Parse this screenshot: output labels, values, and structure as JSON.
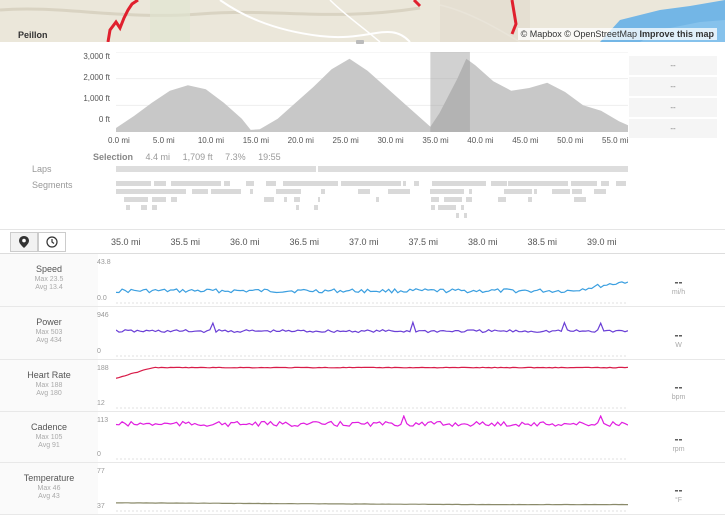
{
  "map": {
    "place": "Peillon",
    "attribution_mapbox": "© Mapbox",
    "attribution_osm": "© OpenStreetMap",
    "attribution_improve": "Improve this map"
  },
  "overview": {
    "y_ticks": [
      "3,000 ft",
      "2,000 ft",
      "1,000 ft",
      "0 ft"
    ],
    "x_ticks": [
      "0.0 mi",
      "5.0 mi",
      "10.0 mi",
      "15.0 mi",
      "20.0 mi",
      "25.0 mi",
      "30.0 mi",
      "35.0 mi",
      "40.0 mi",
      "45.0 mi",
      "50.0 mi",
      "55.0 mi"
    ],
    "side_values": [
      "--",
      "--",
      "--",
      "--"
    ],
    "selection": {
      "label": "Selection",
      "distance": "4.4 mi",
      "elevation": "1,709 ft",
      "grade": "7.3%",
      "time": "19:55"
    },
    "laps_label": "Laps",
    "segments_label": "Segments"
  },
  "tabs": {
    "map_icon": "map-pin-icon",
    "clock_icon": "clock-icon",
    "x_ticks": [
      "35.0 mi",
      "35.5 mi",
      "36.0 mi",
      "36.5 mi",
      "37.0 mi",
      "37.5 mi",
      "38.0 mi",
      "38.5 mi",
      "39.0 mi"
    ]
  },
  "metrics": [
    {
      "name": "Speed",
      "max": "Max 23.5",
      "avg": "Avg 13.4",
      "axis_max": "43.8",
      "axis_min": "0.0",
      "value": "--",
      "unit": "mi/h",
      "color": "#3b9fe0"
    },
    {
      "name": "Power",
      "max": "Max 503",
      "avg": "Avg 434",
      "axis_max": "946",
      "axis_min": "0",
      "value": "--",
      "unit": "W",
      "color": "#6a3fd6"
    },
    {
      "name": "Heart Rate",
      "max": "Max 188",
      "avg": "Avg 180",
      "axis_max": "188",
      "axis_min": "12",
      "value": "--",
      "unit": "bpm",
      "color": "#d81b48"
    },
    {
      "name": "Cadence",
      "max": "Max 105",
      "avg": "Avg 91",
      "axis_max": "113",
      "axis_min": "0",
      "value": "--",
      "unit": "rpm",
      "color": "#e01ee0"
    },
    {
      "name": "Temperature",
      "max": "Max 46",
      "avg": "Avg 43",
      "axis_max": "77",
      "axis_min": "37",
      "value": "--",
      "unit": "°F",
      "color": "#8a8a6a"
    }
  ],
  "chart_data": {
    "type": "area",
    "xlabel": "",
    "ylabel": "",
    "x_unit": "mi",
    "y_unit": "ft",
    "xlim": [
      0,
      57
    ],
    "ylim": [
      0,
      3000
    ],
    "x": [
      0,
      2,
      4,
      6,
      8,
      10,
      12,
      14,
      15,
      16,
      18,
      20,
      22,
      24,
      26,
      28,
      30,
      32,
      34,
      35,
      36,
      38,
      39,
      40,
      42,
      44,
      46,
      48,
      50,
      52,
      54,
      56,
      57
    ],
    "y": [
      150,
      600,
      1100,
      1550,
      1750,
      1600,
      1100,
      500,
      80,
      100,
      500,
      1100,
      1700,
      2350,
      2750,
      2300,
      1700,
      1100,
      500,
      200,
      700,
      2000,
      2750,
      2500,
      1900,
      1550,
      1650,
      1850,
      1500,
      1000,
      800,
      400,
      250
    ],
    "selection_range": [
      35.0,
      39.4
    ]
  }
}
